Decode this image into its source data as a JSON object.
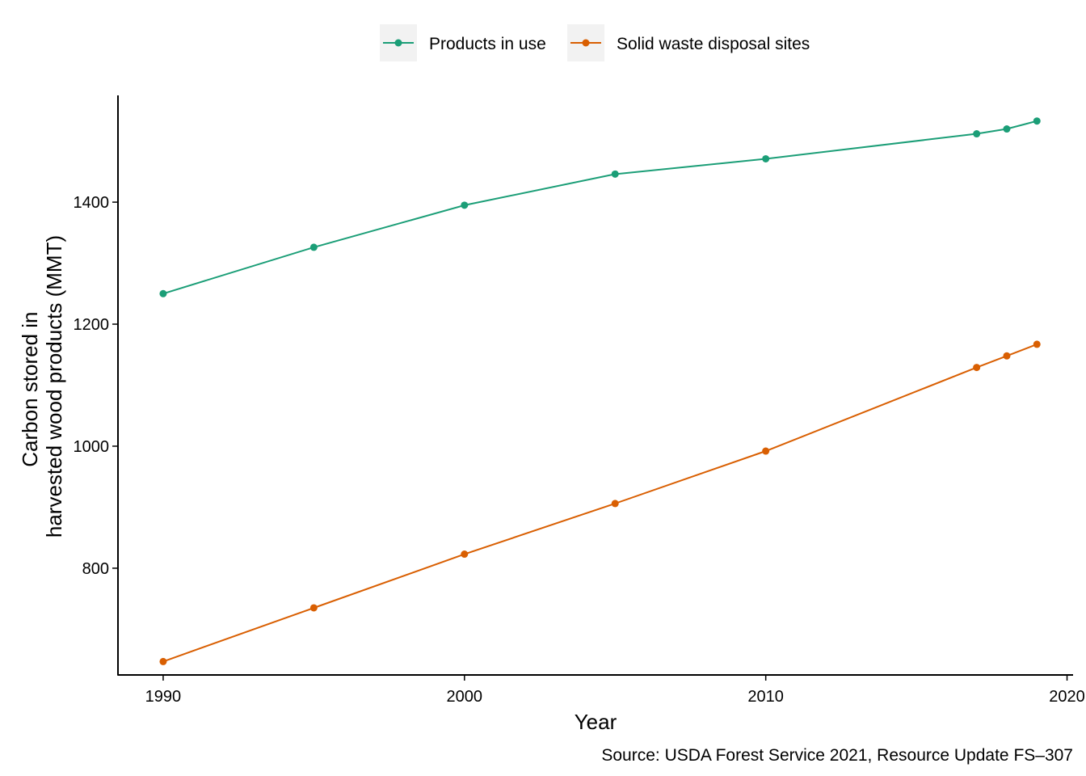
{
  "chart_data": {
    "type": "line",
    "title": "",
    "xlabel": "Year",
    "ylabel_lines": [
      "Carbon stored in",
      "harvested wood products (MMT)"
    ],
    "caption": "Source: USDA Forest Service 2021, Resource Update FS–307",
    "xlim": [
      1988.5,
      2020.2
    ],
    "ylim": [
      625,
      1575
    ],
    "x_ticks": [
      1990,
      2000,
      2010,
      2020
    ],
    "y_ticks": [
      800,
      1000,
      1200,
      1400
    ],
    "legend_position": "top",
    "grid": false,
    "series": [
      {
        "name": "Products in use",
        "color": "#1b9e77",
        "x": [
          1990,
          1995,
          2000,
          2005,
          2010,
          2017,
          2018,
          2019
        ],
        "y": [
          1250,
          1326,
          1395,
          1446,
          1471,
          1512,
          1520,
          1533
        ]
      },
      {
        "name": "Solid waste disposal sites",
        "color": "#d95f02",
        "x": [
          1990,
          1995,
          2000,
          2005,
          2010,
          2017,
          2018,
          2019
        ],
        "y": [
          647,
          735,
          823,
          906,
          992,
          1129,
          1148,
          1167
        ]
      }
    ]
  }
}
